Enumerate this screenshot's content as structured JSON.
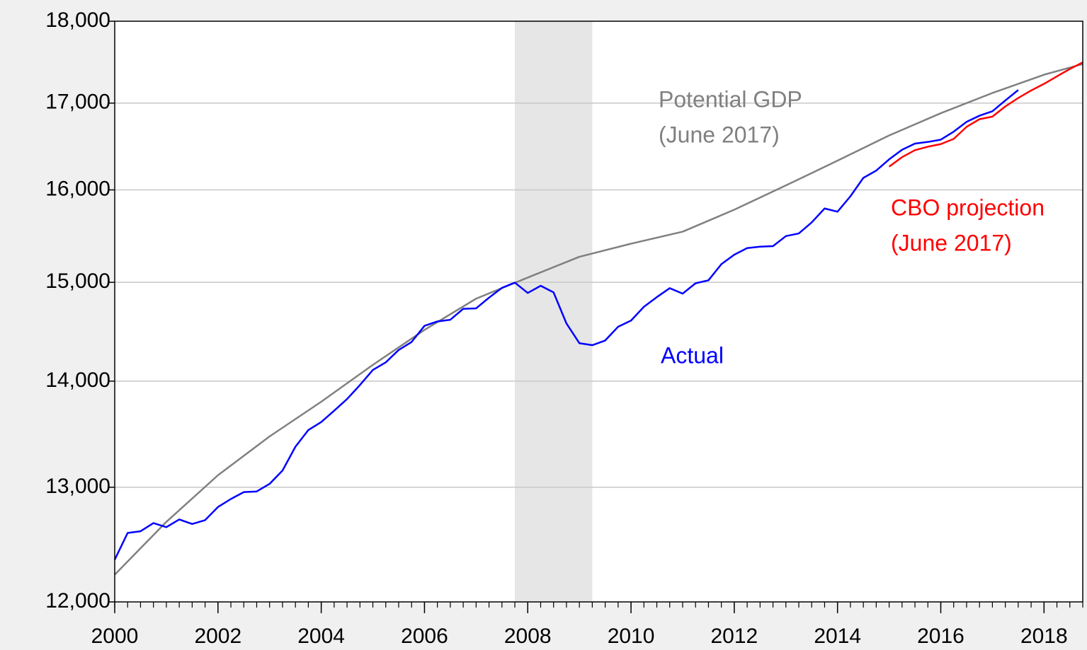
{
  "chart_data": {
    "type": "line",
    "ylog": true,
    "grid": true,
    "xlim": [
      2000,
      2018.75
    ],
    "xticks": [
      2000,
      2002,
      2004,
      2006,
      2008,
      2010,
      2012,
      2014,
      2016,
      2018
    ],
    "ylim": [
      12000,
      18000
    ],
    "yticks": [
      {
        "value": 12000,
        "label": "12,000"
      },
      {
        "value": 13000,
        "label": "13,000"
      },
      {
        "value": 14000,
        "label": "14,000"
      },
      {
        "value": 15000,
        "label": "15,000"
      },
      {
        "value": 16000,
        "label": "16,000"
      },
      {
        "value": 17000,
        "label": "17,000"
      },
      {
        "value": 18000,
        "label": "18,000"
      }
    ],
    "shading": [
      2007.75,
      2009.25
    ],
    "series": [
      {
        "name": "Actual",
        "color": "#0000ff",
        "x": [
          2000,
          2000.25,
          2000.5,
          2000.75,
          2001,
          2001.25,
          2001.5,
          2001.75,
          2002,
          2002.25,
          2002.5,
          2002.75,
          2003,
          2003.25,
          2003.5,
          2003.75,
          2004,
          2004.25,
          2004.5,
          2004.75,
          2005,
          2005.25,
          2005.5,
          2005.75,
          2006,
          2006.25,
          2006.5,
          2006.75,
          2007,
          2007.25,
          2007.5,
          2007.75,
          2008,
          2008.25,
          2008.5,
          2008.75,
          2009,
          2009.25,
          2009.5,
          2009.75,
          2010,
          2010.25,
          2010.5,
          2010.75,
          2011,
          2011.25,
          2011.5,
          2011.75,
          2012,
          2012.25,
          2012.5,
          2012.75,
          2013,
          2013.25,
          2013.5,
          2013.75,
          2014,
          2014.25,
          2014.5,
          2014.75,
          2015,
          2015.25,
          2015.5,
          2015.75,
          2016,
          2016.25,
          2016.5,
          2016.75,
          2017,
          2017.25,
          2017.5
        ],
        "values": [
          12359,
          12592,
          12607,
          12679,
          12643,
          12711,
          12671,
          12705,
          12822,
          12894,
          12956,
          12962,
          13031,
          13153,
          13373,
          13530,
          13606,
          13714,
          13826,
          13962,
          14110,
          14185,
          14308,
          14388,
          14551,
          14596,
          14613,
          14725,
          14730,
          14840,
          14942,
          14997,
          14889,
          14964,
          14895,
          14575,
          14376,
          14356,
          14403,
          14542,
          14605,
          14746,
          14846,
          14939,
          14882,
          14990,
          15021,
          15191,
          15292,
          15363,
          15378,
          15384,
          15492,
          15521,
          15641,
          15794,
          15758,
          15929,
          16135,
          16217,
          16345,
          16455,
          16526,
          16545,
          16571,
          16664,
          16779,
          16851,
          16903,
          17031,
          17156
        ]
      },
      {
        "name": "Potential GDP",
        "color": "#808080",
        "x": [
          2000,
          2001,
          2002,
          2003,
          2004,
          2005,
          2006,
          2007,
          2008,
          2009,
          2010,
          2011,
          2012,
          2013,
          2014,
          2015,
          2016,
          2017,
          2018,
          2018.75
        ],
        "values": [
          12230,
          12690,
          13110,
          13470,
          13800,
          14160,
          14510,
          14830,
          15050,
          15270,
          15410,
          15540,
          15780,
          16050,
          16330,
          16620,
          16880,
          17120,
          17340,
          17470
        ]
      },
      {
        "name": "CBO projection",
        "color": "#ff0000",
        "x": [
          2015,
          2015.25,
          2015.5,
          2015.75,
          2016,
          2016.25,
          2016.5,
          2016.75,
          2017,
          2017.25,
          2017.5,
          2017.75,
          2018,
          2018.25,
          2018.5,
          2018.75
        ],
        "values": [
          16262,
          16370,
          16450,
          16490,
          16520,
          16580,
          16720,
          16810,
          16840,
          16960,
          17060,
          17150,
          17230,
          17320,
          17410,
          17490
        ]
      }
    ],
    "annotations": [
      {
        "lines": [
          "Potential GDP",
          "(June 2017)"
        ],
        "color": "#808080"
      },
      {
        "lines": [
          "Actual"
        ],
        "color": "#0000ff"
      },
      {
        "lines": [
          "CBO projection",
          "(June 2017)"
        ],
        "color": "#ff0000"
      }
    ]
  }
}
